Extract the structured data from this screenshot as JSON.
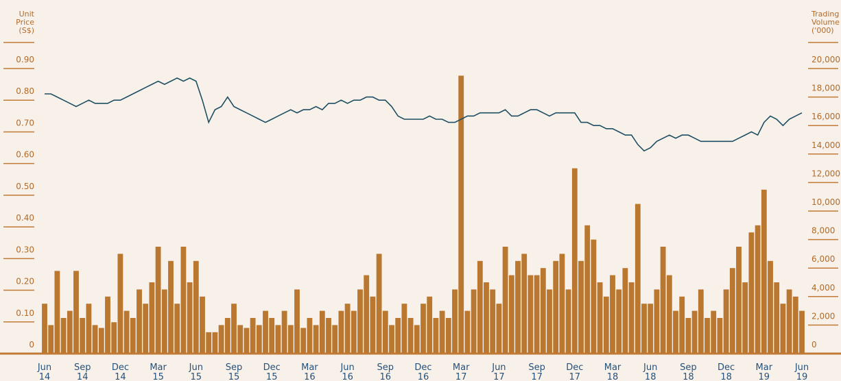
{
  "chart_data": {
    "type": "bar",
    "y_title": [
      "Unit",
      "Price",
      "(S$)"
    ],
    "y2_title": [
      "Trading",
      "Volume",
      "('000)"
    ],
    "x_labels": [
      [
        "Jun",
        "14"
      ],
      [
        "Sep",
        "14"
      ],
      [
        "Dec",
        "14"
      ],
      [
        "Mar",
        "15"
      ],
      [
        "Jun",
        "15"
      ],
      [
        "Sep",
        "15"
      ],
      [
        "Dec",
        "15"
      ],
      [
        "Mar",
        "16"
      ],
      [
        "Jun",
        "16"
      ],
      [
        "Sep",
        "16"
      ],
      [
        "Dec",
        "16"
      ],
      [
        "Mar",
        "17"
      ],
      [
        "Jun",
        "17"
      ],
      [
        "Sep",
        "17"
      ],
      [
        "Dec",
        "17"
      ],
      [
        "Mar",
        "18"
      ],
      [
        "Jun",
        "18"
      ],
      [
        "Sep",
        "18"
      ],
      [
        "Dec",
        "18"
      ],
      [
        "Mar",
        "19"
      ],
      [
        "Jun",
        "19"
      ]
    ],
    "ylim": [
      0,
      0.9
    ],
    "yticks": [
      0,
      {
        "value": 0.1,
        "label": "0.10"
      },
      {
        "value": 0.2,
        "label": "0.20"
      },
      {
        "value": 0.3,
        "label": "0.30"
      },
      {
        "value": 0.4,
        "label": "0.40"
      },
      {
        "value": 0.5,
        "label": "0.50"
      },
      {
        "value": 0.6,
        "label": "0.60"
      },
      {
        "value": 0.7,
        "label": "0.70"
      },
      {
        "value": 0.8,
        "label": "0.80"
      },
      {
        "value": 0.9,
        "label": "0.90"
      }
    ],
    "y2lim": [
      0,
      20000
    ],
    "y2ticks": [
      0,
      {
        "value": 2000,
        "label": "2,000"
      },
      {
        "value": 4000,
        "label": "4,000"
      },
      {
        "value": 6000,
        "label": "6,000"
      },
      {
        "value": 8000,
        "label": "8,000"
      },
      {
        "value": 10000,
        "label": "10,000"
      },
      {
        "value": 12000,
        "label": "12,000"
      },
      {
        "value": 14000,
        "label": "14,000"
      },
      {
        "value": 16000,
        "label": "16,000"
      },
      {
        "value": 18000,
        "label": "18,000"
      },
      {
        "value": 20000,
        "label": "20,000"
      }
    ],
    "series": [
      {
        "type": "bar",
        "axis": "y2",
        "color": "#b9772f",
        "values": [
          3500,
          2000,
          5800,
          2500,
          3000,
          5800,
          2500,
          3500,
          2000,
          1800,
          4000,
          2200,
          7000,
          3000,
          2500,
          4500,
          3500,
          5000,
          7500,
          4500,
          6500,
          3500,
          7500,
          5000,
          6500,
          4000,
          1500,
          1500,
          2000,
          2500,
          3500,
          2000,
          1800,
          2500,
          2000,
          3000,
          2500,
          2000,
          3000,
          2000,
          4500,
          1800,
          2500,
          2000,
          3000,
          2500,
          2000,
          3000,
          3500,
          3000,
          4500,
          5500,
          4000,
          7000,
          3000,
          2000,
          2500,
          3500,
          2500,
          2000,
          3500,
          4000,
          2500,
          3000,
          2500,
          4500,
          19500,
          3000,
          4500,
          6500,
          5000,
          4500,
          3500,
          7500,
          5500,
          6500,
          7000,
          5500,
          5500,
          6000,
          4500,
          6500,
          7000,
          4500,
          13000,
          6500,
          9000,
          8000,
          5000,
          4000,
          5500,
          4500,
          6000,
          5000,
          10500,
          3500,
          3500,
          4500,
          7500,
          5500,
          3000,
          4000,
          2500,
          3000,
          4500,
          2500,
          3000,
          2500,
          4500,
          6000,
          7500,
          5000,
          8500,
          9000,
          11500,
          6500,
          5000,
          3500,
          4500,
          4000,
          3000
        ]
      },
      {
        "type": "line",
        "axis": "y",
        "color": "#1d4e63",
        "values": [
          0.82,
          0.82,
          0.81,
          0.8,
          0.79,
          0.78,
          0.79,
          0.8,
          0.79,
          0.79,
          0.79,
          0.8,
          0.8,
          0.81,
          0.82,
          0.83,
          0.84,
          0.85,
          0.86,
          0.85,
          0.86,
          0.87,
          0.86,
          0.87,
          0.86,
          0.8,
          0.73,
          0.77,
          0.78,
          0.81,
          0.78,
          0.77,
          0.76,
          0.75,
          0.74,
          0.73,
          0.74,
          0.75,
          0.76,
          0.77,
          0.76,
          0.77,
          0.77,
          0.78,
          0.77,
          0.79,
          0.79,
          0.8,
          0.79,
          0.8,
          0.8,
          0.81,
          0.81,
          0.8,
          0.8,
          0.78,
          0.75,
          0.74,
          0.74,
          0.74,
          0.74,
          0.75,
          0.74,
          0.74,
          0.73,
          0.73,
          0.74,
          0.75,
          0.75,
          0.76,
          0.76,
          0.76,
          0.76,
          0.77,
          0.75,
          0.75,
          0.76,
          0.77,
          0.77,
          0.76,
          0.75,
          0.76,
          0.76,
          0.76,
          0.76,
          0.73,
          0.73,
          0.72,
          0.72,
          0.71,
          0.71,
          0.7,
          0.69,
          0.69,
          0.66,
          0.64,
          0.65,
          0.67,
          0.68,
          0.69,
          0.68,
          0.69,
          0.69,
          0.68,
          0.67,
          0.67,
          0.67,
          0.67,
          0.67,
          0.67,
          0.68,
          0.69,
          0.7,
          0.69,
          0.73,
          0.75,
          0.74,
          0.72,
          0.74,
          0.75,
          0.76
        ]
      }
    ]
  }
}
